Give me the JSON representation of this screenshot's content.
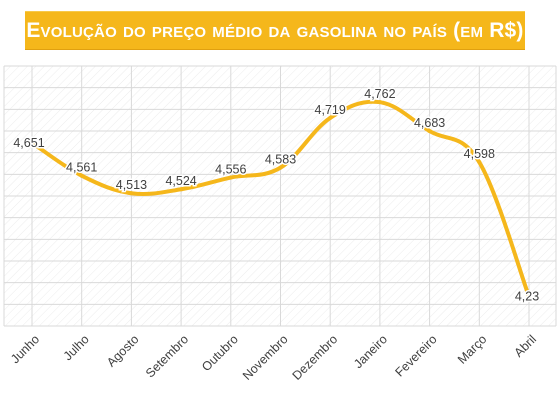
{
  "title": "Evolução do preço médio da gasolina no país (em R$)",
  "colors": {
    "banner": "#f5b71b",
    "line": "#f5b71b",
    "grid": "#d9d9d9",
    "text": "#404040"
  },
  "chart_data": {
    "type": "line",
    "title": "Evolução do preço médio da gasolina no país (em R$)",
    "xlabel": "",
    "ylabel": "",
    "categories": [
      "Junho",
      "Julho",
      "Agosto",
      "Setembro",
      "Outubro",
      "Novembro",
      "Dezembro",
      "Janeiro",
      "Fevereiro",
      "Março",
      "Abril"
    ],
    "series": [
      {
        "values": [
          4.651,
          4.561,
          4.513,
          4.524,
          4.556,
          4.583,
          4.719,
          4.762,
          4.683,
          4.598,
          4.23
        ],
        "labels": [
          "4,651",
          "4,561",
          "4,513",
          "4,524",
          "4,556",
          "4,583",
          "4,719",
          "4,762",
          "4,683",
          "4,598",
          "4,23"
        ]
      }
    ],
    "ylim": [
      4.15,
      4.85
    ],
    "grid": true,
    "smooth": true,
    "legend": "none"
  }
}
